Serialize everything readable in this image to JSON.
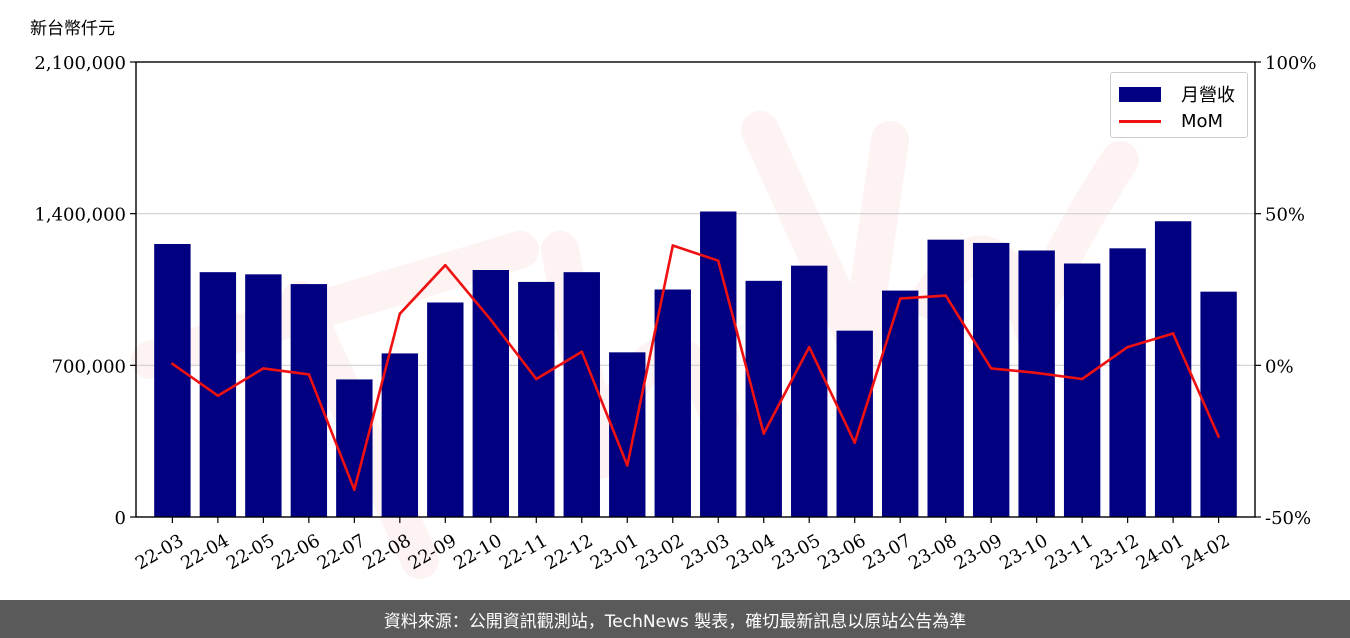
{
  "unit_label": "新台幣仟元",
  "footer_text": "資料來源：公開資訊觀測站，TechNews 製表，確切最新訊息以原站公告為準",
  "colors": {
    "bar": "#000080",
    "line": "#ee1111",
    "footer_bg": "#5a5a5a"
  },
  "chart_data": {
    "type": "bar+line",
    "categories": [
      "22-03",
      "22-04",
      "22-05",
      "22-06",
      "22-07",
      "22-08",
      "22-09",
      "22-10",
      "22-11",
      "22-12",
      "23-01",
      "23-02",
      "23-03",
      "23-04",
      "23-05",
      "23-06",
      "23-07",
      "23-08",
      "23-09",
      "23-10",
      "23-11",
      "23-12",
      "24-01",
      "24-02"
    ],
    "series": [
      {
        "name": "月營收",
        "type": "bar",
        "axis": "left",
        "values": [
          1260000,
          1130000,
          1120000,
          1075000,
          635000,
          755000,
          990000,
          1140000,
          1085000,
          1130000,
          760000,
          1050000,
          1410000,
          1090000,
          1160000,
          860000,
          1045000,
          1280000,
          1265000,
          1230000,
          1170000,
          1240000,
          1365000,
          1040000
        ]
      },
      {
        "name": "MoM",
        "type": "line",
        "axis": "right",
        "values": [
          0.5,
          -10,
          -1,
          -3,
          -41,
          17,
          33,
          15,
          -4.5,
          4.5,
          -33,
          39.5,
          34.5,
          -22.5,
          6,
          -25.5,
          22,
          23,
          -1,
          -2.5,
          -4.5,
          6,
          10.5,
          -23.5
        ]
      }
    ],
    "y_left": {
      "range": [
        0,
        2100000
      ],
      "ticks": [
        "0",
        "700,000",
        "1,400,000",
        "2,100,000"
      ]
    },
    "y_right": {
      "range": [
        -50,
        100
      ],
      "ticks": [
        "-50%",
        "0%",
        "50%",
        "100%"
      ]
    },
    "grid": "horizontal",
    "legend_position": "top-right"
  }
}
